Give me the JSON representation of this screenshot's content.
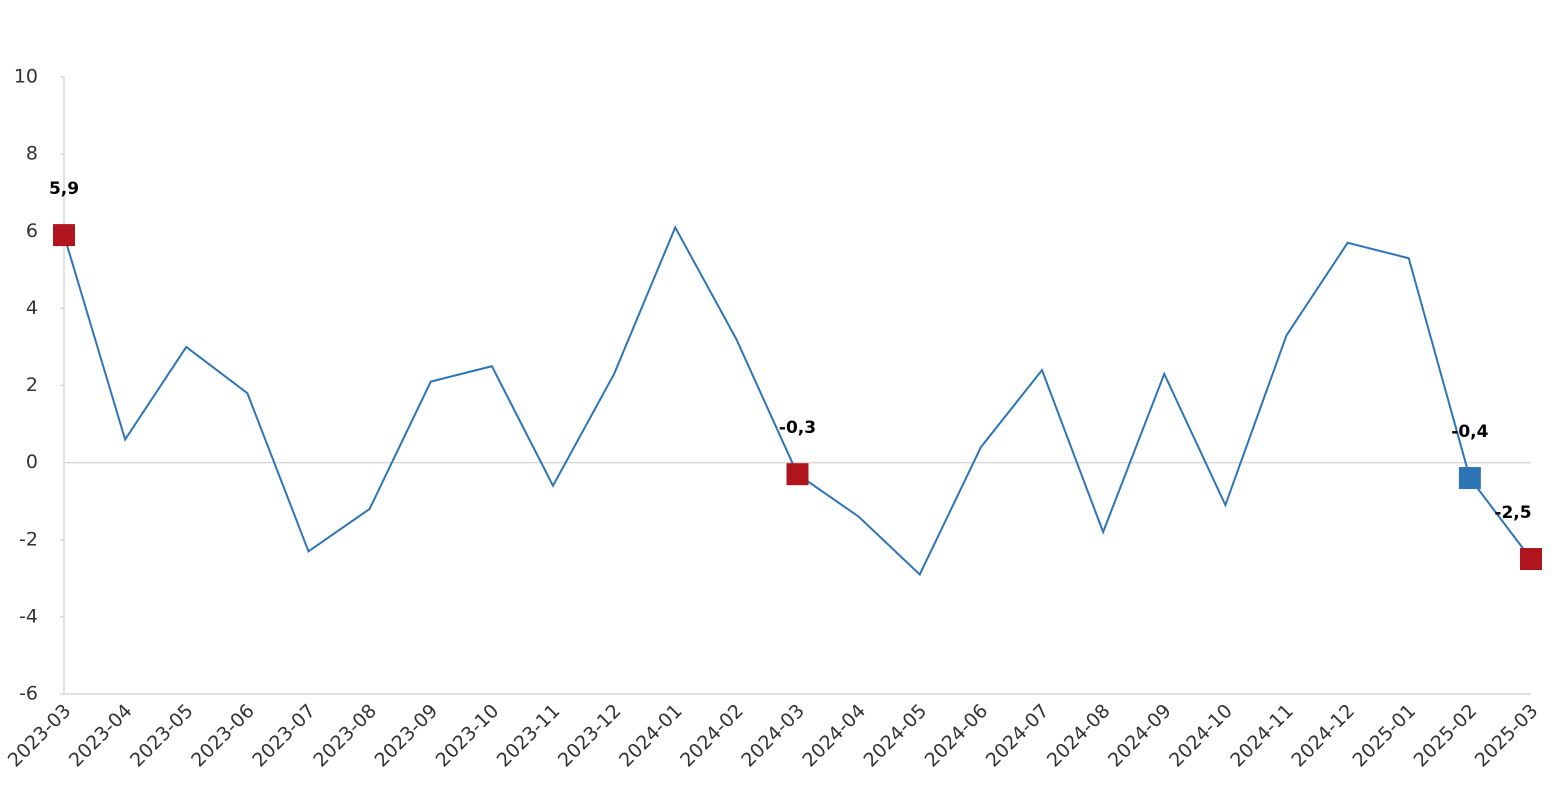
{
  "chart_data": {
    "type": "line",
    "categories": [
      "2023-03",
      "2023-04",
      "2023-05",
      "2023-06",
      "2023-07",
      "2023-08",
      "2023-09",
      "2023-10",
      "2023-11",
      "2023-12",
      "2024-01",
      "2024-02",
      "2024-03",
      "2024-04",
      "2024-05",
      "2024-06",
      "2024-07",
      "2024-08",
      "2024-09",
      "2024-10",
      "2024-11",
      "2024-12",
      "2025-01",
      "2025-02",
      "2025-03"
    ],
    "series": [
      {
        "color": "#2e75b6",
        "values": [
          5.9,
          0.6,
          3.0,
          1.8,
          -2.3,
          -1.2,
          2.1,
          2.5,
          -0.6,
          2.3,
          6.1,
          3.2,
          -0.3,
          -1.4,
          -2.9,
          0.4,
          2.4,
          -1.8,
          2.3,
          -1.1,
          3.3,
          5.7,
          5.3,
          -0.4,
          -2.5
        ],
        "value_labels": [
          "5,9",
          null,
          null,
          null,
          null,
          null,
          null,
          null,
          null,
          null,
          null,
          null,
          "-0,3",
          null,
          null,
          null,
          null,
          null,
          null,
          null,
          null,
          null,
          null,
          "-0,4",
          "-2,5"
        ],
        "marker_colors": [
          "#b0151d",
          null,
          null,
          null,
          null,
          null,
          null,
          null,
          null,
          null,
          null,
          null,
          "#b0151d",
          null,
          null,
          null,
          null,
          null,
          null,
          null,
          null,
          null,
          null,
          "#2e75b6",
          "#b0151d"
        ]
      }
    ],
    "ylim": [
      -6,
      10
    ],
    "yticks": [
      -6,
      -4,
      -2,
      0,
      2,
      4,
      6,
      8,
      10
    ],
    "grid": false
  }
}
